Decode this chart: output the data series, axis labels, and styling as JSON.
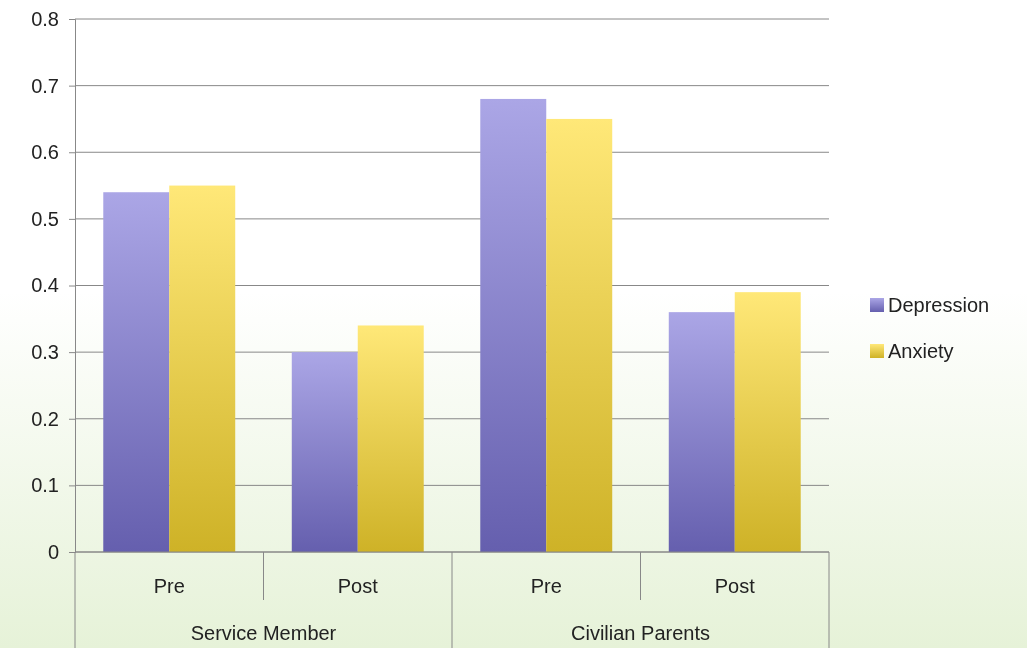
{
  "chart_data": {
    "type": "bar",
    "categories": [
      "Pre",
      "Post",
      "Pre",
      "Post"
    ],
    "series": [
      {
        "name": "Depression",
        "color": "#7d76d8",
        "values": [
          0.54,
          0.3,
          0.68,
          0.36
        ]
      },
      {
        "name": "Anxiety",
        "color": "#ffdc30",
        "values": [
          0.55,
          0.34,
          0.65,
          0.39
        ]
      }
    ],
    "annotations": [
      "Service Member",
      "Civilian Parents"
    ],
    "ylim": [
      0,
      0.8
    ],
    "yticks": [
      0,
      0.1,
      0.2,
      0.3,
      0.4,
      0.5,
      0.6,
      0.7,
      0.8
    ],
    "grid": "y",
    "legend": "right"
  }
}
